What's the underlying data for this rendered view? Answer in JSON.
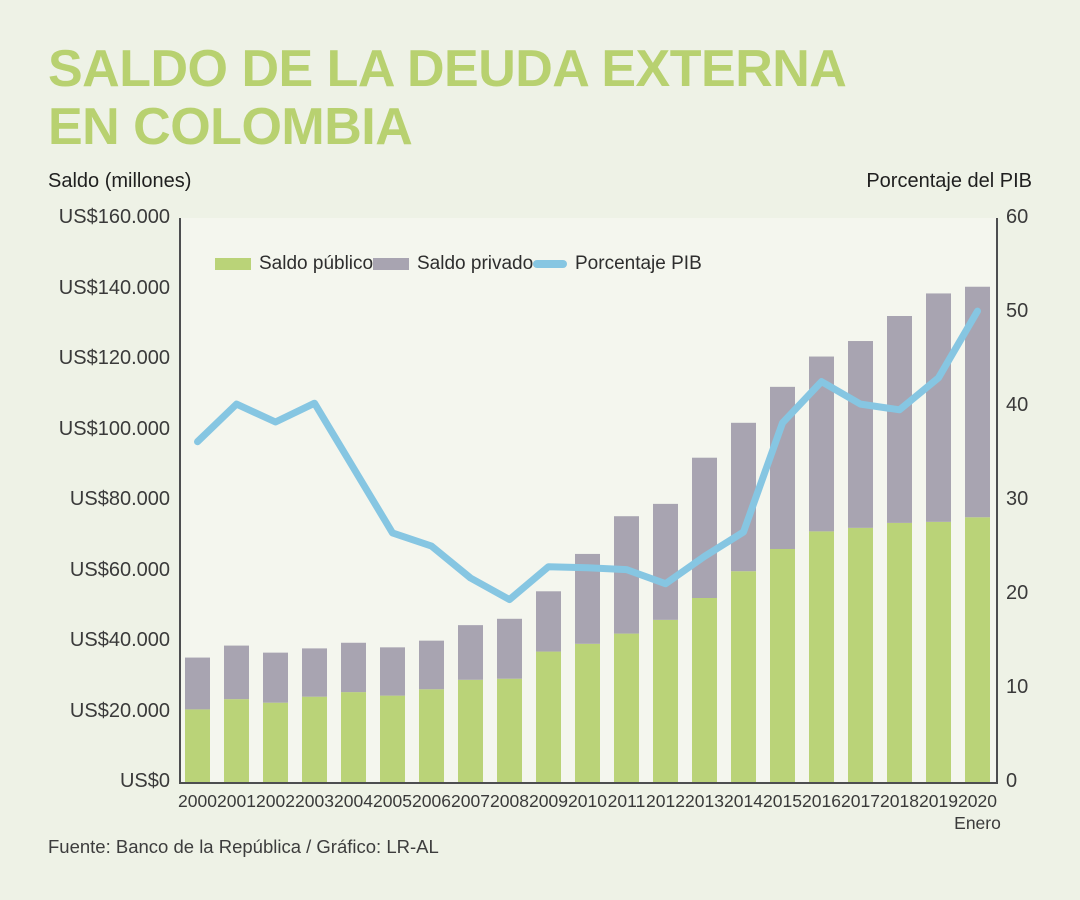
{
  "chart_data": {
    "type": "combo-stacked-bar-line",
    "title_line1": "SALDO DE LA DEUDA EXTERNA",
    "title_line2": "EN COLOMBIA",
    "left_axis_caption": "Saldo (millones)",
    "right_axis_caption": "Porcentaje del PIB",
    "categories": [
      "2000",
      "2001",
      "2002",
      "2003",
      "2004",
      "2005",
      "2006",
      "2007",
      "2008",
      "2009",
      "2010",
      "2011",
      "2012",
      "2013",
      "2014",
      "2015",
      "2016",
      "2017",
      "2018",
      "2019",
      "2020"
    ],
    "x_sub_label": {
      "category": "2020",
      "label": "Enero"
    },
    "series": [
      {
        "name": "Saldo público",
        "type": "bar",
        "stack": "deuda",
        "color": "#bad378",
        "values": [
          20600,
          23500,
          22500,
          24200,
          25500,
          24500,
          26300,
          29000,
          29300,
          37000,
          39200,
          42100,
          46000,
          52200,
          59800,
          66100,
          71100,
          72100,
          73500,
          73800,
          75100
        ]
      },
      {
        "name": "Saldo privado",
        "type": "bar",
        "stack": "deuda",
        "color": "#a8a4b1",
        "values": [
          14700,
          15200,
          14200,
          13700,
          14000,
          13700,
          13800,
          15500,
          17000,
          17100,
          25500,
          33300,
          32900,
          39800,
          42100,
          46000,
          49600,
          53000,
          58700,
          64800,
          65400
        ]
      },
      {
        "name": "Porcentaje PIB",
        "type": "line",
        "axis": "right",
        "color": "#86c6e2",
        "values": [
          36.2,
          40.2,
          38.3,
          40.3,
          33.4,
          26.5,
          25.1,
          21.7,
          19.4,
          22.9,
          22.8,
          22.6,
          21.1,
          24.0,
          26.6,
          38.2,
          42.6,
          40.2,
          39.6,
          43.0,
          50.1
        ]
      }
    ],
    "left_axis": {
      "min": 0,
      "max": 160000,
      "ticks": [
        {
          "value": 160000,
          "label": "US$160.000"
        },
        {
          "value": 140000,
          "label": "US$140.000"
        },
        {
          "value": 120000,
          "label": "US$120.000"
        },
        {
          "value": 100000,
          "label": "US$100.000"
        },
        {
          "value": 80000,
          "label": "US$80.000"
        },
        {
          "value": 60000,
          "label": "US$60.000"
        },
        {
          "value": 40000,
          "label": "US$40.000"
        },
        {
          "value": 20000,
          "label": "US$20.000"
        },
        {
          "value": 0,
          "label": "US$0"
        }
      ]
    },
    "right_axis": {
      "min": 0,
      "max": 60,
      "ticks": [
        {
          "value": 60,
          "label": "60"
        },
        {
          "value": 50,
          "label": "50"
        },
        {
          "value": 40,
          "label": "40"
        },
        {
          "value": 30,
          "label": "30"
        },
        {
          "value": 20,
          "label": "20"
        },
        {
          "value": 10,
          "label": "10"
        },
        {
          "value": 0,
          "label": "0"
        }
      ]
    },
    "grid": false,
    "legend_position": "top-inside",
    "colors": {
      "title": "#b8d170",
      "page_background": "#eef2e6",
      "plot_background": "#f4f6ee",
      "axis_line": "#4d4e50",
      "text": "#3a3a3a"
    }
  },
  "footer": {
    "source": "Fuente: Banco de la República / Gráfico: LR-AL"
  }
}
